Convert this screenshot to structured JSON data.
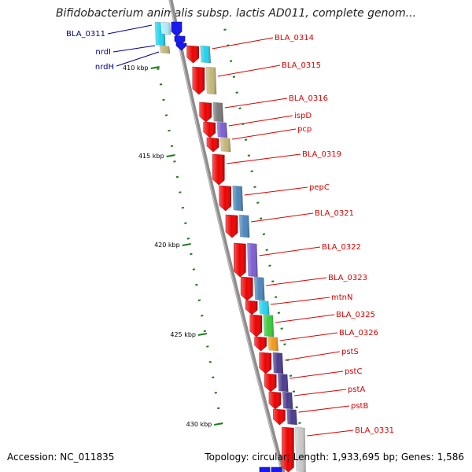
{
  "title": "Bifidobacterium animalis subsp. lactis AD011, complete genom...",
  "footer": {
    "accession": "Accession: NC_011835",
    "summary": "Topology: circular; Length: 1,933,695 bp; Genes: 1,586"
  },
  "colors": {
    "backbone": "#8c8c8c",
    "cds_forward": "#ee0000",
    "label_forward": "#dd0000",
    "label_reverse": "#00008b",
    "tick": "#1e7a1e",
    "cog_cyan": "#22d3f0",
    "cog_khaki": "#c2b676",
    "cog_gray": "#7a7a7a",
    "cog_purple": "#7b5fd0",
    "cog_steelblue": "#4b86bb",
    "cog_green": "#3ccc3c",
    "cog_orange": "#f39a1a",
    "cog_darkpurple": "#4a3b8f",
    "cog_lightgray": "#c8c8c8",
    "cog_blue": "#1a1aee"
  },
  "scale_labels": [
    "410 kbp",
    "415 kbp",
    "420 kbp",
    "425 kbp",
    "430 kbp"
  ],
  "reverse_genes": [
    "BLA_0311",
    "nrdI",
    "nrdH"
  ],
  "forward_genes": [
    "BLA_0314",
    "BLA_0315",
    "BLA_0316",
    "ispD",
    "pcp",
    "BLA_0319",
    "pepC",
    "BLA_0321",
    "BLA_0322",
    "BLA_0323",
    "mtnN",
    "BLA_0325",
    "BLA_0326",
    "pstS",
    "pstC",
    "pstA",
    "pstB",
    "BLA_0331"
  ]
}
